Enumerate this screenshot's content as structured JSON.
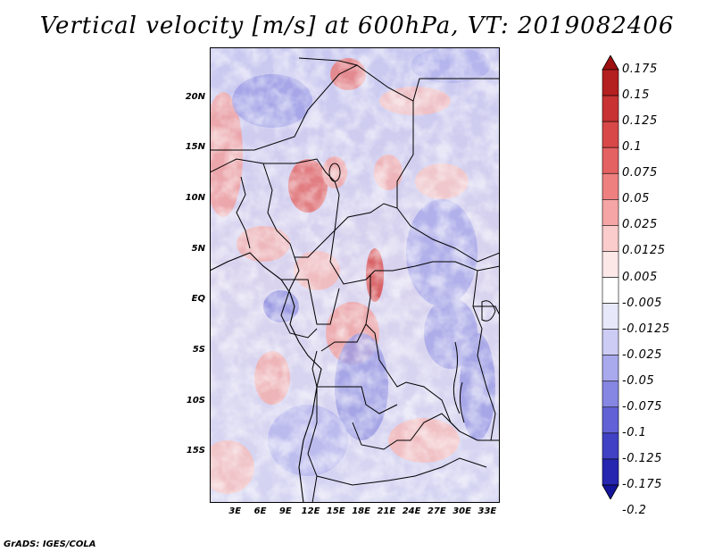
{
  "title": "Vertical velocity [m/s] at 600hPa, VT: 2019082406",
  "footer": "GrADS: IGES/COLA",
  "axes": {
    "y_ticks": [
      "20N",
      "15N",
      "10N",
      "5N",
      "EQ",
      "5S",
      "10S",
      "15S"
    ],
    "x_ticks": [
      "3E",
      "6E",
      "9E",
      "12E",
      "15E",
      "18E",
      "21E",
      "24E",
      "27E",
      "30E",
      "33E"
    ],
    "lon_range": [
      0,
      34.5
    ],
    "lat_range": [
      -20,
      25
    ]
  },
  "colorbar": {
    "labels": [
      "0.175",
      "0.15",
      "0.125",
      "0.1",
      "0.075",
      "0.05",
      "0.025",
      "0.0125",
      "0.005",
      "-0.005",
      "-0.0125",
      "-0.025",
      "-0.05",
      "-0.075",
      "-0.1",
      "-0.125",
      "-0.175",
      "-0.2"
    ],
    "colors": [
      "#9e0f0f",
      "#b41f1f",
      "#c83232",
      "#d84848",
      "#e46262",
      "#ee8080",
      "#f5a5a5",
      "#fbcccc",
      "#fde8e8",
      "#ffffff",
      "#e8e8fb",
      "#ccccf5",
      "#a9a9ee",
      "#8686e3",
      "#6262d6",
      "#4141c6",
      "#2626b0",
      "#14149a"
    ]
  }
}
